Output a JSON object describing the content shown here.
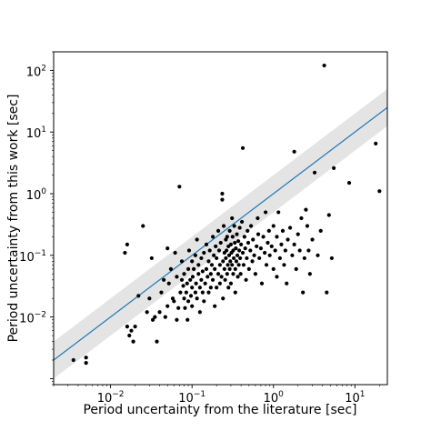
{
  "chart_data": {
    "type": "scatter",
    "title": "",
    "xlabel": "Period uncertainty from the literature [sec]",
    "ylabel": "Period uncertainty from this work [sec]",
    "xscale": "log",
    "yscale": "log",
    "xlim": [
      0.002,
      25
    ],
    "ylim": [
      0.0008,
      200
    ],
    "grid": false,
    "legend": "none",
    "x_ticks": [
      {
        "value": 0.01,
        "base": "10",
        "exp": "−2"
      },
      {
        "value": 0.1,
        "base": "10",
        "exp": "−1"
      },
      {
        "value": 1,
        "base": "10",
        "exp": "0"
      },
      {
        "value": 10,
        "base": "10",
        "exp": "1"
      }
    ],
    "y_ticks": [
      {
        "value": 0.01,
        "base": "10",
        "exp": "−2"
      },
      {
        "value": 0.1,
        "base": "10",
        "exp": "−1"
      },
      {
        "value": 1,
        "base": "10",
        "exp": "0"
      },
      {
        "value": 10,
        "base": "10",
        "exp": "1"
      },
      {
        "value": 100,
        "base": "10",
        "exp": "2"
      }
    ],
    "fit_line": {
      "x": [
        0.002,
        25
      ],
      "y": [
        0.002,
        25
      ],
      "color": "#1f77b4"
    },
    "band": {
      "lower_factor": 0.5,
      "upper_factor": 2.0,
      "color": "#e4e4e4"
    },
    "point_color": "#000000",
    "points": [
      [
        0.0035,
        0.002
      ],
      [
        0.005,
        0.0022
      ],
      [
        0.005,
        0.0018
      ],
      [
        0.015,
        0.11
      ],
      [
        0.016,
        0.15
      ],
      [
        0.016,
        0.007
      ],
      [
        0.018,
        0.006
      ],
      [
        0.02,
        0.007
      ],
      [
        0.017,
        0.005
      ],
      [
        0.019,
        0.004
      ],
      [
        0.022,
        0.022
      ],
      [
        0.025,
        0.3
      ],
      [
        0.028,
        0.012
      ],
      [
        0.03,
        0.02
      ],
      [
        0.032,
        0.09
      ],
      [
        0.033,
        0.009
      ],
      [
        0.035,
        0.01
      ],
      [
        0.037,
        0.004
      ],
      [
        0.04,
        0.012
      ],
      [
        0.042,
        0.025
      ],
      [
        0.045,
        0.04
      ],
      [
        0.047,
        0.01
      ],
      [
        0.05,
        0.015
      ],
      [
        0.05,
        0.13
      ],
      [
        0.052,
        0.035
      ],
      [
        0.055,
        0.06
      ],
      [
        0.058,
        0.02
      ],
      [
        0.06,
        0.018
      ],
      [
        0.062,
        0.11
      ],
      [
        0.065,
        0.009
      ],
      [
        0.065,
        0.045
      ],
      [
        0.068,
        0.014
      ],
      [
        0.07,
        1.3
      ],
      [
        0.072,
        0.025
      ],
      [
        0.075,
        0.04
      ],
      [
        0.075,
        0.08
      ],
      [
        0.078,
        0.032
      ],
      [
        0.08,
        0.05
      ],
      [
        0.08,
        0.02
      ],
      [
        0.082,
        0.014
      ],
      [
        0.085,
        0.025
      ],
      [
        0.087,
        0.035
      ],
      [
        0.088,
        0.009
      ],
      [
        0.09,
        0.06
      ],
      [
        0.09,
        0.018
      ],
      [
        0.092,
        0.12
      ],
      [
        0.095,
        0.04
      ],
      [
        0.097,
        0.022
      ],
      [
        0.1,
        0.03
      ],
      [
        0.1,
        0.08
      ],
      [
        0.1,
        0.015
      ],
      [
        0.102,
        0.045
      ],
      [
        0.105,
        0.06
      ],
      [
        0.11,
        0.025
      ],
      [
        0.11,
        0.1
      ],
      [
        0.112,
        0.035
      ],
      [
        0.115,
        0.02
      ],
      [
        0.115,
        0.18
      ],
      [
        0.12,
        0.05
      ],
      [
        0.12,
        0.07
      ],
      [
        0.125,
        0.012
      ],
      [
        0.125,
        0.03
      ],
      [
        0.13,
        0.04
      ],
      [
        0.13,
        0.09
      ],
      [
        0.135,
        0.025
      ],
      [
        0.135,
        0.055
      ],
      [
        0.14,
        0.11
      ],
      [
        0.14,
        0.018
      ],
      [
        0.145,
        0.035
      ],
      [
        0.15,
        0.06
      ],
      [
        0.15,
        0.15
      ],
      [
        0.155,
        0.045
      ],
      [
        0.16,
        0.08
      ],
      [
        0.16,
        0.025
      ],
      [
        0.165,
        0.12
      ],
      [
        0.17,
        0.05
      ],
      [
        0.17,
        0.03
      ],
      [
        0.175,
        0.07
      ],
      [
        0.18,
        0.2
      ],
      [
        0.18,
        0.04
      ],
      [
        0.185,
        0.1
      ],
      [
        0.19,
        0.015
      ],
      [
        0.19,
        0.06
      ],
      [
        0.195,
        0.14
      ],
      [
        0.2,
        0.03
      ],
      [
        0.2,
        0.09
      ],
      [
        0.21,
        0.05
      ],
      [
        0.21,
        0.25
      ],
      [
        0.215,
        0.12
      ],
      [
        0.22,
        0.07
      ],
      [
        0.22,
        0.035
      ],
      [
        0.225,
        0.16
      ],
      [
        0.23,
        0.045
      ],
      [
        0.235,
        0.8
      ],
      [
        0.235,
        1.0
      ],
      [
        0.24,
        0.08
      ],
      [
        0.24,
        0.02
      ],
      [
        0.245,
        0.3
      ],
      [
        0.25,
        0.11
      ],
      [
        0.25,
        0.06
      ],
      [
        0.255,
        0.04
      ],
      [
        0.26,
        0.18
      ],
      [
        0.26,
        0.09
      ],
      [
        0.265,
        0.12
      ],
      [
        0.27,
        0.05
      ],
      [
        0.27,
        0.2
      ],
      [
        0.275,
        0.07
      ],
      [
        0.28,
        0.14
      ],
      [
        0.28,
        0.03
      ],
      [
        0.285,
        0.1
      ],
      [
        0.29,
        0.06
      ],
      [
        0.29,
        0.25
      ],
      [
        0.295,
        0.08
      ],
      [
        0.3,
        0.15
      ],
      [
        0.3,
        0.035
      ],
      [
        0.305,
        0.11
      ],
      [
        0.31,
        0.07
      ],
      [
        0.31,
        0.4
      ],
      [
        0.315,
        0.2
      ],
      [
        0.32,
        0.05
      ],
      [
        0.32,
        0.12
      ],
      [
        0.325,
        0.09
      ],
      [
        0.33,
        0.3
      ],
      [
        0.335,
        0.16
      ],
      [
        0.34,
        0.06
      ],
      [
        0.34,
        0.025
      ],
      [
        0.345,
        0.13
      ],
      [
        0.35,
        0.08
      ],
      [
        0.355,
        0.22
      ],
      [
        0.36,
        0.1
      ],
      [
        0.365,
        0.045
      ],
      [
        0.37,
        0.17
      ],
      [
        0.375,
        0.07
      ],
      [
        0.38,
        0.12
      ],
      [
        0.385,
        0.28
      ],
      [
        0.39,
        0.09
      ],
      [
        0.395,
        0.05
      ],
      [
        0.4,
        0.15
      ],
      [
        0.41,
        0.35
      ],
      [
        0.42,
        0.11
      ],
      [
        0.42,
        5.5
      ],
      [
        0.43,
        0.07
      ],
      [
        0.44,
        0.2
      ],
      [
        0.45,
        0.13
      ],
      [
        0.46,
        0.04
      ],
      [
        0.47,
        0.09
      ],
      [
        0.48,
        0.25
      ],
      [
        0.49,
        0.16
      ],
      [
        0.5,
        0.06
      ],
      [
        0.52,
        0.12
      ],
      [
        0.53,
        0.3
      ],
      [
        0.55,
        0.08
      ],
      [
        0.56,
        0.18
      ],
      [
        0.58,
        0.1
      ],
      [
        0.6,
        0.05
      ],
      [
        0.62,
        0.14
      ],
      [
        0.64,
        0.4
      ],
      [
        0.65,
        0.22
      ],
      [
        0.67,
        0.09
      ],
      [
        0.7,
        0.13
      ],
      [
        0.72,
        0.035
      ],
      [
        0.75,
        0.2
      ],
      [
        0.78,
        0.11
      ],
      [
        0.8,
        0.5
      ],
      [
        0.82,
        0.07
      ],
      [
        0.85,
        0.16
      ],
      [
        0.88,
        0.25
      ],
      [
        0.9,
        0.1
      ],
      [
        0.95,
        0.14
      ],
      [
        1.0,
        0.06
      ],
      [
        1.0,
        0.3
      ],
      [
        1.05,
        0.12
      ],
      [
        1.1,
        0.2
      ],
      [
        1.1,
        0.045
      ],
      [
        1.15,
        0.5
      ],
      [
        1.2,
        0.09
      ],
      [
        1.25,
        0.15
      ],
      [
        1.3,
        0.25
      ],
      [
        1.35,
        0.07
      ],
      [
        1.4,
        0.12
      ],
      [
        1.45,
        0.035
      ],
      [
        1.5,
        0.18
      ],
      [
        1.6,
        0.28
      ],
      [
        1.7,
        0.1
      ],
      [
        1.8,
        4.8
      ],
      [
        1.8,
        0.15
      ],
      [
        1.9,
        0.06
      ],
      [
        2.0,
        0.22
      ],
      [
        2.1,
        0.12
      ],
      [
        2.2,
        0.4
      ],
      [
        2.3,
        0.025
      ],
      [
        2.4,
        0.09
      ],
      [
        2.5,
        0.55
      ],
      [
        2.6,
        0.3
      ],
      [
        2.7,
        0.12
      ],
      [
        2.8,
        0.05
      ],
      [
        3.0,
        0.18
      ],
      [
        3.2,
        2.2
      ],
      [
        3.5,
        0.1
      ],
      [
        3.8,
        0.25
      ],
      [
        4.2,
        120.0
      ],
      [
        4.5,
        0.025
      ],
      [
        4.8,
        0.45
      ],
      [
        5.2,
        0.09
      ],
      [
        5.5,
        2.6
      ],
      [
        8.5,
        1.5
      ],
      [
        18.0,
        6.5
      ],
      [
        20.0,
        1.1
      ]
    ]
  }
}
